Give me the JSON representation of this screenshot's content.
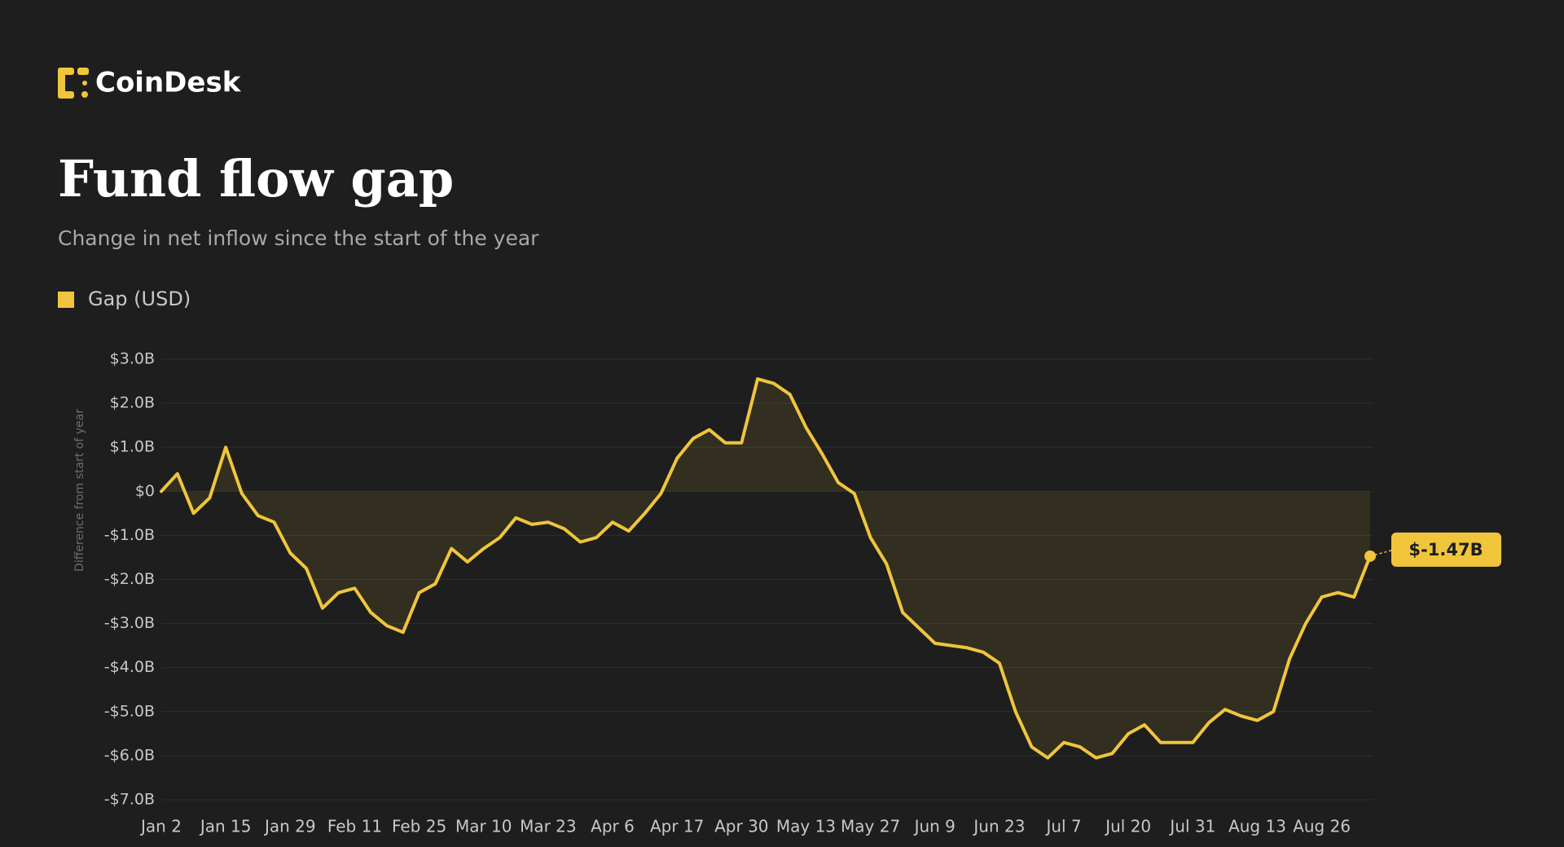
{
  "brand": "CoinDesk",
  "chart_data": {
    "type": "area",
    "title": "Fund flow gap",
    "subtitle": "Change in net inflow since the start of the year",
    "y_label": "Difference from start of year",
    "categories": [
      "Jan 2",
      null,
      null,
      null,
      "Jan 15",
      null,
      null,
      null,
      "Jan 29",
      null,
      null,
      null,
      "Feb 11",
      null,
      null,
      null,
      "Feb 25",
      null,
      null,
      null,
      "Mar 10",
      null,
      null,
      null,
      "Mar 23",
      null,
      null,
      null,
      "Apr 6",
      null,
      null,
      null,
      "Apr 17",
      null,
      null,
      null,
      "Apr 30",
      null,
      null,
      null,
      "May 13",
      null,
      null,
      null,
      "May 27",
      null,
      null,
      null,
      "Jun 9",
      null,
      null,
      null,
      "Jun 23",
      null,
      null,
      null,
      "Jul 7",
      null,
      null,
      null,
      "Jul 20",
      null,
      null,
      null,
      "Jul 31",
      null,
      null,
      null,
      "Aug 13",
      null,
      null,
      null,
      "Aug 26",
      null,
      null,
      null
    ],
    "series": [
      {
        "name": "Gap (USD)",
        "color": "#f0c53c",
        "values": [
          0,
          0.4,
          -0.5,
          -0.15,
          1.0,
          -0.05,
          -0.55,
          -0.7,
          -1.4,
          -1.75,
          -2.65,
          -2.3,
          -2.2,
          -2.75,
          -3.05,
          -3.2,
          -2.3,
          -2.1,
          -1.3,
          -1.6,
          -1.3,
          -1.05,
          -0.6,
          -0.75,
          -0.7,
          -0.85,
          -1.15,
          -1.05,
          -0.7,
          -0.9,
          -0.5,
          -0.05,
          0.75,
          1.2,
          1.4,
          1.1,
          1.1,
          2.55,
          2.45,
          2.2,
          1.45,
          0.85,
          0.2,
          -0.05,
          -1.05,
          -1.65,
          -2.75,
          -3.1,
          -3.45,
          -3.5,
          -3.55,
          -3.65,
          -3.9,
          -5.0,
          -5.8,
          -6.05,
          -5.7,
          -5.8,
          -6.05,
          -5.95,
          -5.5,
          -5.3,
          -5.7,
          -5.7,
          -5.7,
          -5.25,
          -4.95,
          -5.1,
          -5.2,
          -5.0,
          -3.8,
          -3.0,
          -2.4,
          -2.3,
          -2.4,
          -1.47
        ],
        "value_labels": [
          null,
          null,
          null,
          null,
          null,
          null,
          null,
          null,
          null,
          null,
          null,
          null,
          null,
          null,
          null,
          null,
          null,
          null,
          null,
          null,
          null,
          null,
          null,
          null,
          null,
          null,
          null,
          null,
          null,
          null,
          null,
          null,
          null,
          null,
          null,
          null,
          null,
          null,
          null,
          null,
          null,
          null,
          null,
          null,
          null,
          null,
          null,
          null,
          null,
          null,
          null,
          null,
          null,
          null,
          null,
          null,
          null,
          null,
          null,
          null,
          null,
          null,
          null,
          null,
          null,
          null,
          null,
          null,
          null,
          null,
          null,
          null,
          null,
          null,
          null,
          "$-1.47B"
        ]
      }
    ],
    "ylim": [
      -7,
      3
    ],
    "yticks": [
      {
        "value": 3,
        "label": "$3.0B"
      },
      {
        "value": 2,
        "label": "$2.0B"
      },
      {
        "value": 1,
        "label": "$1.0B"
      },
      {
        "value": 0,
        "label": "$0"
      },
      {
        "value": -1,
        "label": "-$1.0B"
      },
      {
        "value": -2,
        "label": "-$2.0B"
      },
      {
        "value": -3,
        "label": "-$3.0B"
      },
      {
        "value": -4,
        "label": "-$4.0B"
      },
      {
        "value": -5,
        "label": "-$5.0B"
      },
      {
        "value": -6,
        "label": "-$6.0B"
      },
      {
        "value": -7,
        "label": "-$7.0B"
      }
    ],
    "grid": true
  }
}
